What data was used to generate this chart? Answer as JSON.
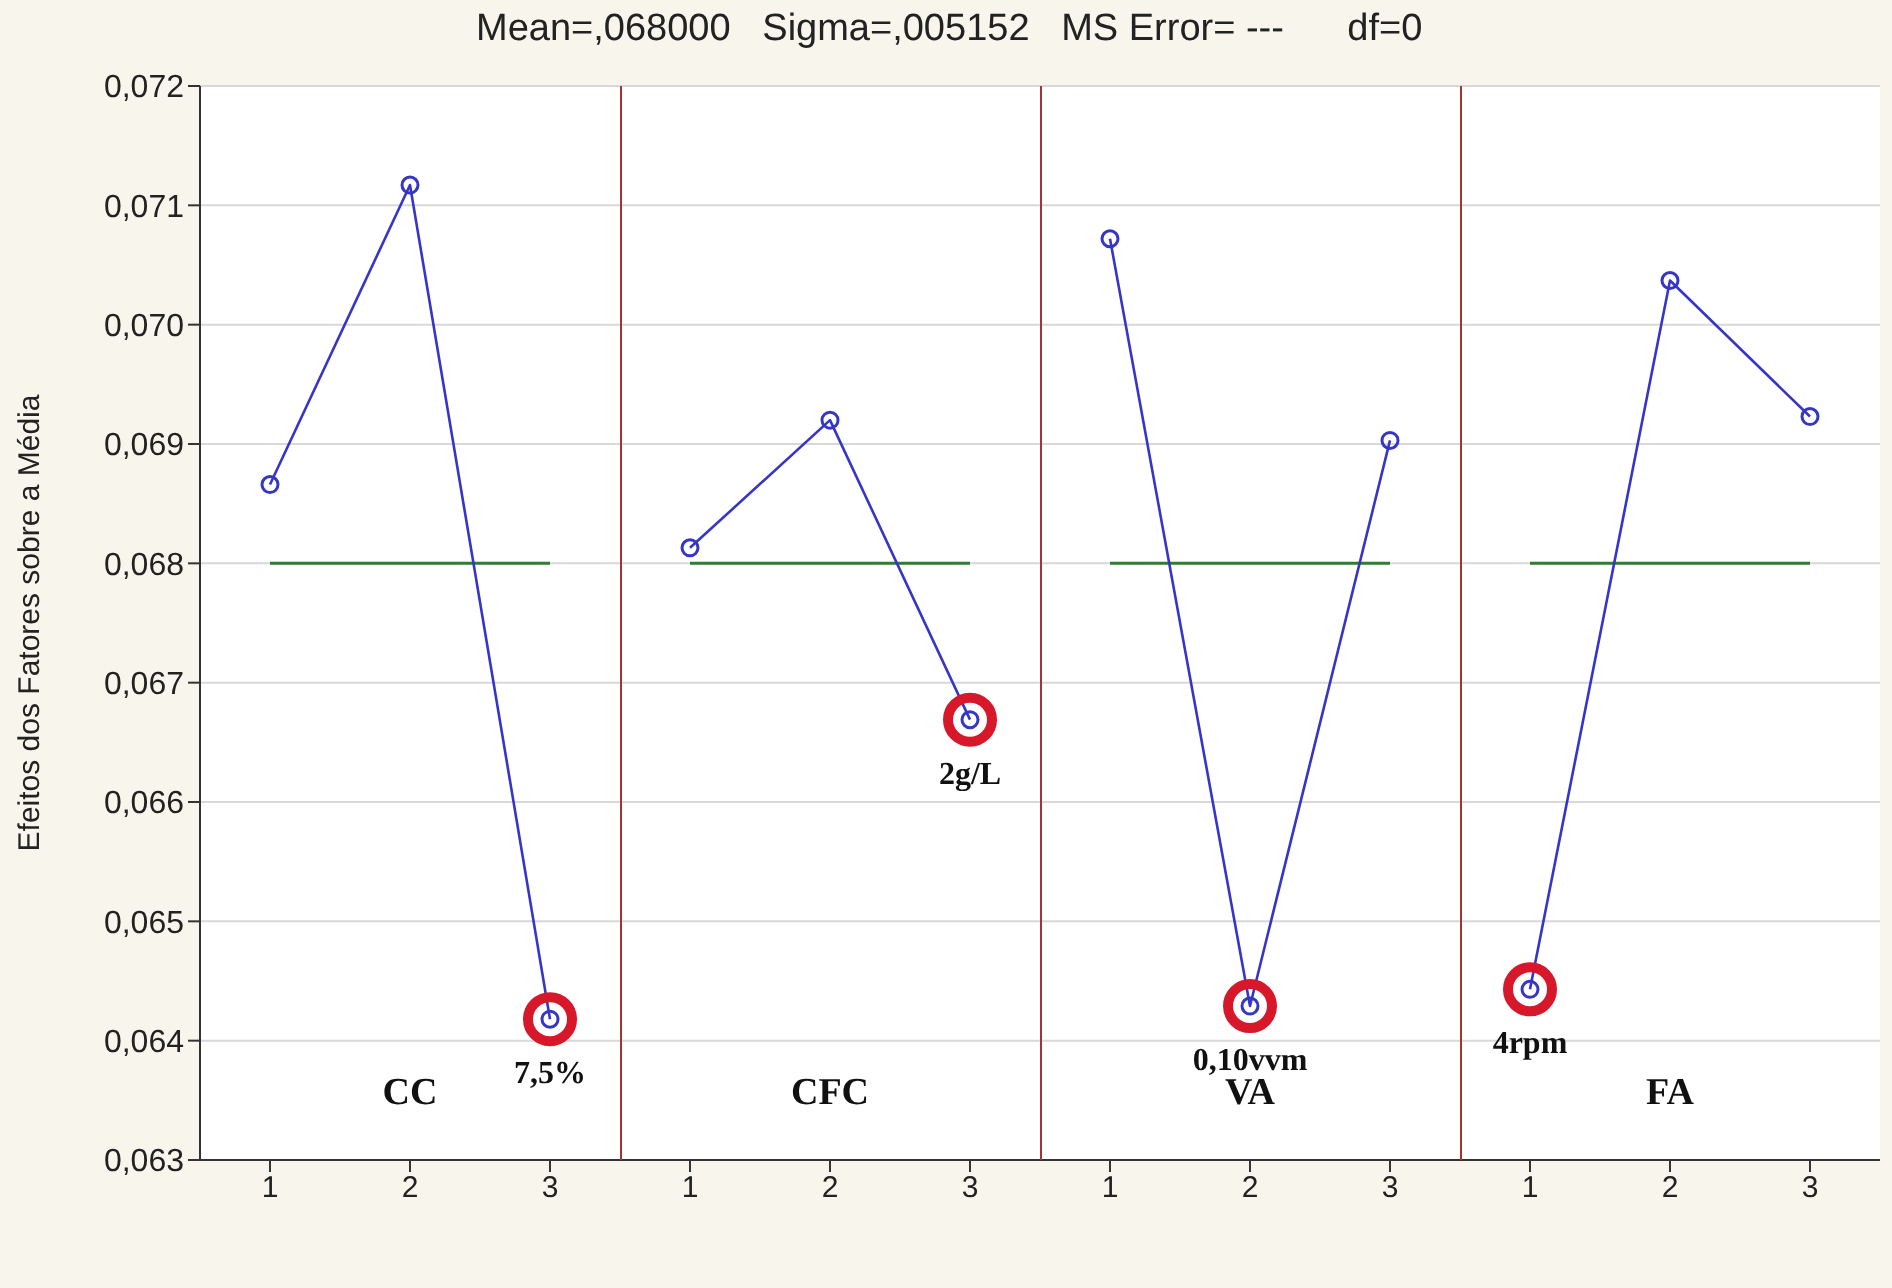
{
  "chart_data": [
    {
      "type": "line",
      "title": "Mean=,068000   Sigma=,005152   MS Error= ---      df=0",
      "ylabel": "Efeitos dos Fatores sobre a Média",
      "categories": [
        "1",
        "2",
        "3"
      ],
      "series": [
        {
          "color": "#3535c8",
          "values": [
            0.06866,
            0.07117,
            0.06418
          ]
        }
      ],
      "ylim": [
        0.063,
        0.072
      ],
      "yticks": [
        {
          "value": 0.063,
          "label": "0,063"
        },
        {
          "value": 0.064,
          "label": "0,064"
        },
        {
          "value": 0.065,
          "label": "0,065"
        },
        {
          "value": 0.066,
          "label": "0,066"
        },
        {
          "value": 0.067,
          "label": "0,067"
        },
        {
          "value": 0.068,
          "label": "0,068"
        },
        {
          "value": 0.069,
          "label": "0,069"
        },
        {
          "value": 0.07,
          "label": "0,070"
        },
        {
          "value": 0.071,
          "label": "0,071"
        },
        {
          "value": 0.072,
          "label": "0,072"
        }
      ],
      "grid": "y",
      "marker": "circle",
      "ref_lines": [
        {
          "axis": "y",
          "value": 0.068,
          "color": "#2e7d32"
        }
      ],
      "annotations": [
        "CC",
        {
          "text": "7,5%",
          "x": "3",
          "y": 0.06418
        }
      ]
    },
    {
      "type": "line",
      "categories": [
        "1",
        "2",
        "3"
      ],
      "series": [
        {
          "color": "#3535c8",
          "values": [
            0.06813,
            0.0692,
            0.06669
          ]
        }
      ],
      "ylim": [
        0.063,
        0.072
      ],
      "yticks": [
        0.063,
        0.064,
        0.065,
        0.066,
        0.067,
        0.068,
        0.069,
        0.07,
        0.071,
        0.072
      ],
      "tick_labels": "x",
      "grid": "y",
      "marker": "circle",
      "ref_lines": [
        {
          "axis": "y",
          "value": 0.068,
          "color": "#2e7d32"
        }
      ],
      "annotations": [
        "CFC",
        {
          "text": "2g/L",
          "x": "3",
          "y": 0.06669
        }
      ]
    },
    {
      "type": "line",
      "categories": [
        "1",
        "2",
        "3"
      ],
      "series": [
        {
          "color": "#3535c8",
          "values": [
            0.07072,
            0.06429,
            0.06903
          ]
        }
      ],
      "ylim": [
        0.063,
        0.072
      ],
      "yticks": [
        0.063,
        0.064,
        0.065,
        0.066,
        0.067,
        0.068,
        0.069,
        0.07,
        0.071,
        0.072
      ],
      "tick_labels": "x",
      "grid": "y",
      "marker": "circle",
      "ref_lines": [
        {
          "axis": "y",
          "value": 0.068,
          "color": "#2e7d32"
        }
      ],
      "annotations": [
        "VA",
        {
          "text": "0,10vvm",
          "x": "2",
          "y": 0.06429
        }
      ]
    },
    {
      "type": "line",
      "categories": [
        "1",
        "2",
        "3"
      ],
      "series": [
        {
          "color": "#3535c8",
          "values": [
            0.06443,
            0.07037,
            0.06923
          ]
        }
      ],
      "ylim": [
        0.063,
        0.072
      ],
      "yticks": [
        0.063,
        0.064,
        0.065,
        0.066,
        0.067,
        0.068,
        0.069,
        0.07,
        0.071,
        0.072
      ],
      "tick_labels": "x",
      "grid": "y",
      "marker": "circle",
      "ref_lines": [
        {
          "axis": "y",
          "value": 0.068,
          "color": "#2e7d32"
        }
      ],
      "annotations": [
        "FA",
        {
          "text": "4rpm",
          "x": "1",
          "y": 0.06443
        }
      ]
    }
  ]
}
